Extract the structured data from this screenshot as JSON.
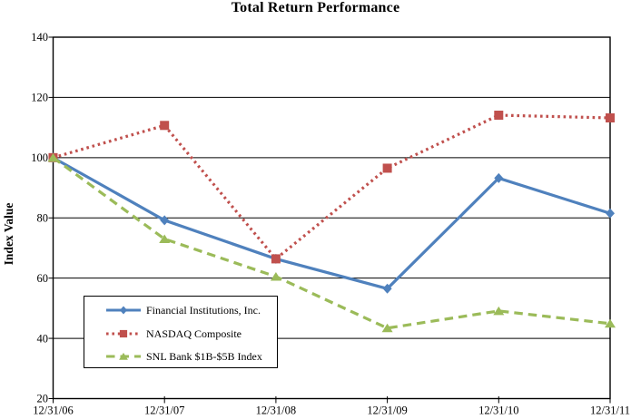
{
  "chart_data": {
    "type": "line",
    "title": "Total Return Performance",
    "ylabel": "Index Value",
    "xlabel": "",
    "categories": [
      "12/31/06",
      "12/31/07",
      "12/31/08",
      "12/31/09",
      "12/31/10",
      "12/31/11"
    ],
    "ylim": [
      20,
      140
    ],
    "yticks": [
      20,
      40,
      60,
      80,
      100,
      120,
      140
    ],
    "grid": "horizontal",
    "legend_position": "inside-bottom-left",
    "axis_color": "#000000",
    "background_color": "#ffffff",
    "series": [
      {
        "name": "Financial Institutions, Inc.",
        "color": "#4f81bd",
        "line_style": "solid",
        "marker": "diamond",
        "values": [
          100,
          79.2,
          66.4,
          56.5,
          93.2,
          81.5
        ]
      },
      {
        "name": "NASDAQ Composite",
        "color": "#c0504d",
        "line_style": "dotted",
        "marker": "square",
        "values": [
          100,
          110.7,
          66.4,
          96.5,
          114.1,
          113.2
        ]
      },
      {
        "name": "SNL Bank $1B-$5B Index",
        "color": "#9bbb59",
        "line_style": "dashed",
        "marker": "triangle",
        "values": [
          100,
          73.0,
          60.5,
          43.4,
          49.1,
          44.9
        ]
      }
    ]
  }
}
